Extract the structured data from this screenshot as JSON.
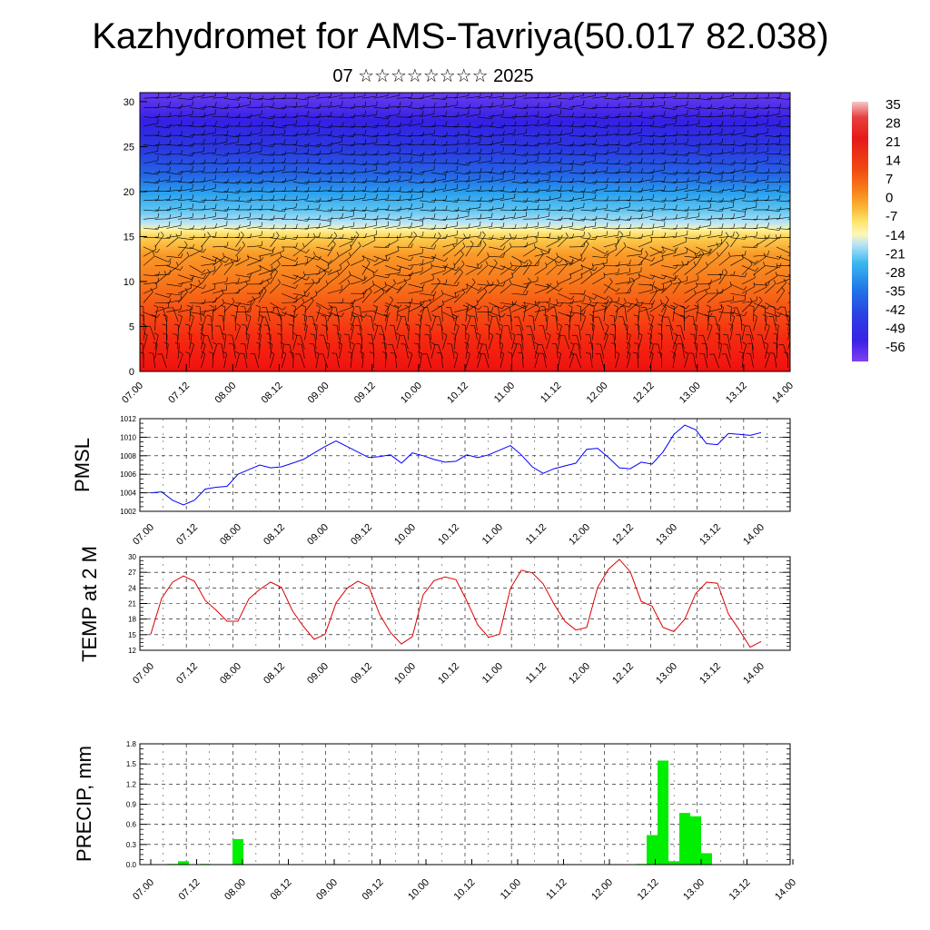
{
  "header": {
    "title": "Kazhydromet for AMS-Tavriya(50.017 82.038)",
    "subtitle": "07 ☆☆☆☆☆☆☆☆ 2025"
  },
  "chart_data": [
    {
      "type": "heatmap",
      "name": "cross-section",
      "xlabel": "",
      "ylabel": "",
      "x_ticks": [
        "07.00",
        "07.12",
        "08.00",
        "08.12",
        "09.00",
        "09.12",
        "10.00",
        "10.12",
        "11.00",
        "11.12",
        "12.00",
        "12.12",
        "13.00",
        "13.12",
        "14.00"
      ],
      "y_ticks": [
        0,
        5,
        10,
        15,
        20,
        25,
        30
      ],
      "ylim": [
        0,
        31
      ],
      "colorbar": {
        "labels": [
          "35",
          "28",
          "21",
          "14",
          "7",
          "0",
          "-7",
          "-14",
          "-21",
          "-28",
          "-35",
          "-42",
          "-49",
          "-56"
        ],
        "colors": [
          "#f6c0c0",
          "#e52020",
          "#f03010",
          "#f55a10",
          "#f88a20",
          "#fbb23a",
          "#fce86a",
          "#fff7b0",
          "#a0dcf0",
          "#30b4f0",
          "#2070e8",
          "#2840e0",
          "#3a20e8",
          "#7a40f0"
        ]
      },
      "annotation": "wind barbs"
    },
    {
      "type": "line",
      "name": "pmsl",
      "ylabel": "PMSL",
      "ylim": [
        1002,
        1012
      ],
      "y_ticks": [
        "1002",
        "1004",
        "1006",
        "1008",
        "1010",
        "1012"
      ],
      "x_ticks": [
        "07.00",
        "07.12",
        "08.00",
        "08.12",
        "09.00",
        "09.12",
        "10.00",
        "10.12",
        "11.00",
        "11.12",
        "12.00",
        "12.12",
        "13.00",
        "13.12",
        "14.00"
      ],
      "color": "#0000ff",
      "values": [
        1004.0,
        1004.1,
        1003.2,
        1002.7,
        1003.2,
        1004.4,
        1004.6,
        1004.7,
        1006.0,
        1006.5,
        1007.0,
        1006.7,
        1006.8,
        1007.2,
        1007.6,
        1008.3,
        1009.0,
        1009.6,
        1009.0,
        1008.4,
        1007.8,
        1007.9,
        1008.1,
        1007.2,
        1008.3,
        1008.0,
        1007.6,
        1007.3,
        1007.4,
        1008.1,
        1007.8,
        1008.1,
        1008.6,
        1009.1,
        1008.1,
        1006.8,
        1006.1,
        1006.6,
        1006.9,
        1007.2,
        1008.7,
        1008.8,
        1007.8,
        1006.7,
        1006.6,
        1007.3,
        1007.1,
        1008.4,
        1010.3,
        1011.3,
        1010.8,
        1009.3,
        1009.2,
        1010.4,
        1010.3,
        1010.2,
        1010.5
      ]
    },
    {
      "type": "line",
      "name": "temp2m",
      "ylabel": "TEMP at 2 M",
      "ylim": [
        12,
        30
      ],
      "y_ticks": [
        "12",
        "15",
        "18",
        "21",
        "24",
        "27",
        "30"
      ],
      "x_ticks": [
        "07.00",
        "07.12",
        "08.00",
        "08.12",
        "09.00",
        "09.12",
        "10.00",
        "10.12",
        "11.00",
        "11.12",
        "12.00",
        "12.12",
        "13.00",
        "13.12",
        "14.00"
      ],
      "color": "#dd0000",
      "values": [
        15.1,
        22.0,
        25.1,
        26.3,
        25.3,
        21.6,
        19.7,
        17.6,
        17.6,
        21.9,
        23.7,
        25.1,
        24.1,
        19.6,
        16.6,
        14.1,
        15.1,
        21.1,
        23.9,
        25.3,
        24.3,
        18.9,
        15.4,
        13.2,
        14.6,
        22.7,
        25.4,
        26.1,
        25.6,
        21.5,
        16.9,
        14.5,
        15.1,
        23.9,
        27.4,
        26.9,
        24.8,
        20.9,
        17.6,
        15.9,
        16.4,
        24.1,
        27.6,
        29.5,
        27.1,
        21.4,
        20.5,
        16.4,
        15.6,
        18.0,
        22.9,
        25.1,
        24.9,
        19.0,
        15.9,
        12.6,
        13.7
      ]
    },
    {
      "type": "bar",
      "name": "precip",
      "ylabel": "PRECIP, mm",
      "ylim": [
        0,
        1.8
      ],
      "y_ticks": [
        "0.0",
        "0.3",
        "0.6",
        "0.9",
        "1.2",
        "1.5",
        "1.8"
      ],
      "x_ticks": [
        "07.00",
        "07.12",
        "08.00",
        "08.12",
        "09.00",
        "09.12",
        "10.00",
        "10.12",
        "11.00",
        "11.12",
        "12.00",
        "12.12",
        "13.00",
        "13.12",
        "14.00"
      ],
      "color": "#00ee00",
      "values": [
        0,
        0,
        0.01,
        0.05,
        0,
        0.01,
        0,
        0,
        0.38,
        0,
        0,
        0,
        0,
        0,
        0,
        0,
        0,
        0,
        0,
        0,
        0,
        0,
        0,
        0,
        0,
        0,
        0,
        0,
        0,
        0,
        0,
        0,
        0,
        0,
        0,
        0,
        0,
        0,
        0,
        0,
        0,
        0,
        0,
        0,
        0,
        0.01,
        0.44,
        1.55,
        0.05,
        0.77,
        0.72,
        0.17,
        0,
        0,
        0,
        0,
        0
      ]
    }
  ]
}
